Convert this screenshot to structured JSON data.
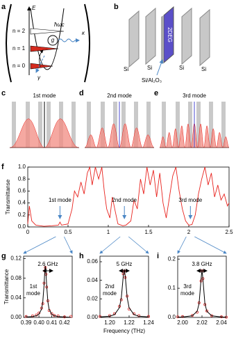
{
  "panel_labels": [
    "a",
    "b",
    "c",
    "d",
    "e",
    "f",
    "g",
    "h",
    "i"
  ],
  "scheme": {
    "energy": "E",
    "levels": [
      "n = 2",
      "n = 1",
      "n = 0"
    ],
    "photon": "ħωc",
    "coupling": "g",
    "cavity_loss": "κ",
    "damping": "γ"
  },
  "device": {
    "layers": [
      "Si",
      "Si",
      "Si",
      "Si"
    ],
    "spacer": "Si/Al₂O₃",
    "sheet": "2DEG"
  },
  "modes": [
    "1st mode",
    "2nd mode",
    "3rd mode"
  ],
  "chart_data": [
    {
      "type": "line",
      "ylabel": "Transmittanse",
      "color": "#e8211c",
      "x": [
        0.0,
        0.02,
        0.05,
        0.1,
        0.2,
        0.3,
        0.38,
        0.4,
        0.42,
        0.5,
        0.55,
        0.58,
        0.62,
        0.66,
        0.7,
        0.74,
        0.77,
        0.8,
        0.84,
        0.88,
        0.92,
        0.95,
        0.98,
        1.02,
        1.05,
        1.08,
        1.12,
        1.18,
        1.22,
        1.28,
        1.32,
        1.36,
        1.4,
        1.44,
        1.48,
        1.52,
        1.56,
        1.6,
        1.64,
        1.68,
        1.72,
        1.76,
        1.8,
        1.84,
        1.88,
        1.92,
        1.96,
        2.0,
        2.04,
        2.08,
        2.12,
        2.16,
        2.2,
        2.24,
        2.28,
        2.32,
        2.36,
        2.4,
        2.44,
        2.48,
        2.5
      ],
      "values": [
        0.05,
        0.35,
        0.1,
        0.03,
        0.01,
        0.02,
        0.03,
        0.08,
        0.03,
        0.05,
        0.3,
        0.6,
        0.5,
        0.75,
        0.55,
        0.9,
        1.0,
        0.7,
        1.0,
        0.8,
        1.0,
        0.6,
        0.3,
        0.15,
        0.5,
        0.3,
        0.05,
        0.02,
        0.03,
        0.1,
        0.45,
        0.3,
        0.8,
        0.55,
        1.0,
        0.7,
        0.95,
        0.5,
        0.9,
        0.4,
        0.15,
        0.5,
        0.85,
        1.0,
        0.6,
        0.3,
        0.1,
        0.03,
        0.04,
        0.2,
        0.55,
        0.8,
        1.0,
        0.7,
        0.9,
        0.5,
        0.7,
        0.45,
        0.55,
        0.35,
        0.4
      ],
      "xlim": [
        0,
        2.5
      ],
      "xticks": [
        0,
        0.5,
        1,
        1.5,
        2,
        2.5
      ],
      "ylim": [
        0,
        1
      ],
      "yticks": [
        {
          "value": 0,
          "label": "0.0"
        },
        0.2,
        0.4,
        0.6,
        0.8,
        {
          "value": 1,
          "label": "1.0"
        }
      ],
      "annotations": [
        {
          "text": "1st mode",
          "x": 0.4
        },
        {
          "text": "2nd mode",
          "x": 1.2
        },
        {
          "text": "3rd mode",
          "x": 2.02
        }
      ]
    },
    {
      "type": "scatter",
      "ylabel": "Transmittance",
      "x": [
        0.39,
        0.395,
        0.398,
        0.4,
        0.402,
        0.403,
        0.404,
        0.4045,
        0.405,
        0.4055,
        0.406,
        0.407,
        0.408,
        0.41,
        0.412,
        0.415,
        0.42,
        0.425
      ],
      "series": [
        {
          "mode": "markers",
          "color": "#e03030",
          "values": [
            0.002,
            0.003,
            0.005,
            0.009,
            0.019,
            0.028,
            0.07,
            0.095,
            0.102,
            0.088,
            0.062,
            0.034,
            0.014,
            0.008,
            0.004,
            0.003,
            0.001,
            0.002
          ]
        },
        {
          "mode": "line",
          "color": "#000000",
          "values": [
            0.0008,
            0.0018,
            0.0035,
            0.0066,
            0.0166,
            0.0312,
            0.066,
            0.0915,
            0.105,
            0.0915,
            0.066,
            0.0312,
            0.0166,
            0.0066,
            0.0035,
            0.0018,
            0.0008,
            0.0004
          ]
        }
      ],
      "xlim": [
        0.388,
        0.426
      ],
      "xticks": [
        0.39,
        {
          "value": 0.4,
          "label": "0.40"
        },
        0.41,
        0.42
      ],
      "ylim": [
        0,
        0.125
      ],
      "yticks": [
        {
          "value": 0,
          "label": "0.00"
        },
        0.04,
        0.08,
        0.12
      ],
      "annotations": [
        {
          "text": "2.6 GHz"
        },
        {
          "text": "1st mode"
        }
      ]
    },
    {
      "type": "scatter",
      "xlabel": "Frequency (THz)",
      "x": [
        1.19,
        1.2,
        1.205,
        1.21,
        1.212,
        1.214,
        1.215,
        1.216,
        1.218,
        1.22,
        1.225,
        1.23,
        1.24
      ],
      "series": [
        {
          "mode": "markers",
          "color": "#e03030",
          "values": [
            0.001,
            0.002,
            0.004,
            0.012,
            0.019,
            0.047,
            0.05,
            0.043,
            0.023,
            0.009,
            0.004,
            0.002,
            0.001
          ]
        },
        {
          "mode": "line",
          "color": "#000000",
          "values": [
            0.0005,
            0.0013,
            0.0031,
            0.0104,
            0.0213,
            0.0448,
            0.052,
            0.0448,
            0.0213,
            0.0104,
            0.0031,
            0.0013,
            0.0005
          ]
        }
      ],
      "xlim": [
        1.19,
        1.24
      ],
      "xticks": [
        {
          "value": 1.2,
          "label": "1.20"
        },
        1.22,
        1.24
      ],
      "ylim": [
        0,
        0.066
      ],
      "yticks": [
        {
          "value": 0,
          "label": "0.00"
        },
        0.02,
        0.04,
        0.06
      ],
      "annotations": [
        {
          "text": "5 GHz"
        },
        {
          "text": "2nd mode"
        }
      ]
    },
    {
      "type": "scatter",
      "x": [
        1.995,
        2.0,
        2.01,
        2.015,
        2.017,
        2.019,
        2.02,
        2.021,
        2.023,
        2.025,
        2.03,
        2.04,
        2.045
      ],
      "series": [
        {
          "mode": "markers",
          "color": "#e03030",
          "values": [
            0.002,
            0.003,
            0.007,
            0.018,
            0.05,
            0.125,
            0.16,
            0.133,
            0.044,
            0.022,
            0.006,
            0.002,
            0.001
          ]
        },
        {
          "mode": "line",
          "color": "#000000",
          "values": [
            0.001,
            0.0015,
            0.0057,
            0.0209,
            0.0473,
            0.129,
            0.165,
            0.129,
            0.0473,
            0.0209,
            0.0057,
            0.0015,
            0.001
          ]
        }
      ],
      "xlim": [
        1.995,
        2.045
      ],
      "xticks": [
        {
          "value": 2,
          "label": "2.00"
        },
        2.02,
        2.04
      ],
      "ylim": [
        0,
        0.21
      ],
      "yticks": [
        {
          "value": 0,
          "label": "0.0"
        },
        0.1,
        0.2
      ],
      "annotations": [
        {
          "text": "3.8 GHz"
        },
        {
          "text": "3rd mode"
        }
      ]
    }
  ]
}
